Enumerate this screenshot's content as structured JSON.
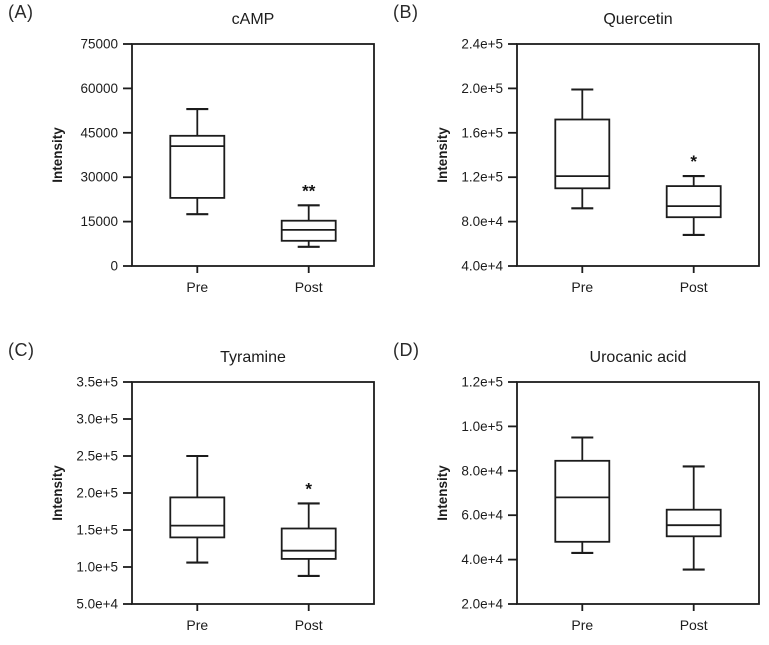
{
  "figure": {
    "background_color": "#ffffff",
    "line_color": "#1c1c1c",
    "box_fill_color": "#ffffff"
  },
  "chart_data": [
    {
      "type": "box",
      "panel_label": "(A)",
      "title": "cAMP",
      "ylabel": "Intensity",
      "xlabel": "",
      "categories": [
        "Pre",
        "Post"
      ],
      "ylim": [
        0,
        75000
      ],
      "grid": false,
      "yticks": [
        {
          "value": 0,
          "label": "0"
        },
        {
          "value": 15000,
          "label": "15000"
        },
        {
          "value": 30000,
          "label": "30000"
        },
        {
          "value": 45000,
          "label": "45000"
        },
        {
          "value": 60000,
          "label": "60000"
        },
        {
          "value": 75000,
          "label": "75000"
        }
      ],
      "series": [
        {
          "name": "Pre",
          "whisker_low": 17500,
          "q1": 23000,
          "median": 40500,
          "q3": 44000,
          "whisker_high": 53000,
          "significance": ""
        },
        {
          "name": "Post",
          "whisker_low": 6500,
          "q1": 8500,
          "median": 12200,
          "q3": 15300,
          "whisker_high": 20500,
          "significance": "**"
        }
      ]
    },
    {
      "type": "box",
      "panel_label": "(B)",
      "title": "Quercetin",
      "ylabel": "Intensity",
      "xlabel": "",
      "categories": [
        "Pre",
        "Post"
      ],
      "ylim": [
        40000,
        240000
      ],
      "grid": false,
      "yticks": [
        {
          "value": 40000,
          "label": "4.0e+4"
        },
        {
          "value": 80000,
          "label": "8.0e+4"
        },
        {
          "value": 120000,
          "label": "1.2e+5"
        },
        {
          "value": 160000,
          "label": "1.6e+5"
        },
        {
          "value": 200000,
          "label": "2.0e+5"
        },
        {
          "value": 240000,
          "label": "2.4e+5"
        }
      ],
      "series": [
        {
          "name": "Pre",
          "whisker_low": 92000,
          "q1": 110000,
          "median": 121000,
          "q3": 172000,
          "whisker_high": 199000,
          "significance": ""
        },
        {
          "name": "Post",
          "whisker_low": 68000,
          "q1": 84000,
          "median": 94000,
          "q3": 112000,
          "whisker_high": 121000,
          "significance": "*"
        }
      ]
    },
    {
      "type": "box",
      "panel_label": "(C)",
      "title": "Tyramine",
      "ylabel": "Intensity",
      "xlabel": "",
      "categories": [
        "Pre",
        "Post"
      ],
      "ylim": [
        50000,
        350000
      ],
      "grid": false,
      "yticks": [
        {
          "value": 50000,
          "label": "5.0e+4"
        },
        {
          "value": 100000,
          "label": "1.0e+5"
        },
        {
          "value": 150000,
          "label": "1.5e+5"
        },
        {
          "value": 200000,
          "label": "2.0e+5"
        },
        {
          "value": 250000,
          "label": "2.5e+5"
        },
        {
          "value": 300000,
          "label": "3.0e+5"
        },
        {
          "value": 350000,
          "label": "3.5e+5"
        }
      ],
      "series": [
        {
          "name": "Pre",
          "whisker_low": 106000,
          "q1": 140000,
          "median": 156000,
          "q3": 194000,
          "whisker_high": 250000,
          "significance": ""
        },
        {
          "name": "Post",
          "whisker_low": 88000,
          "q1": 111000,
          "median": 122000,
          "q3": 152000,
          "whisker_high": 186000,
          "significance": "*"
        }
      ]
    },
    {
      "type": "box",
      "panel_label": "(D)",
      "title": "Urocanic acid",
      "ylabel": "Intensity",
      "xlabel": "",
      "categories": [
        "Pre",
        "Post"
      ],
      "ylim": [
        20000,
        120000
      ],
      "grid": false,
      "yticks": [
        {
          "value": 20000,
          "label": "2.0e+4"
        },
        {
          "value": 40000,
          "label": "4.0e+4"
        },
        {
          "value": 60000,
          "label": "6.0e+4"
        },
        {
          "value": 80000,
          "label": "8.0e+4"
        },
        {
          "value": 100000,
          "label": "1.0e+5"
        },
        {
          "value": 120000,
          "label": "1.2e+5"
        }
      ],
      "series": [
        {
          "name": "Pre",
          "whisker_low": 43000,
          "q1": 48000,
          "median": 68000,
          "q3": 84500,
          "whisker_high": 95000,
          "significance": ""
        },
        {
          "name": "Post",
          "whisker_low": 35500,
          "q1": 50500,
          "median": 55500,
          "q3": 62500,
          "whisker_high": 82000,
          "significance": ""
        }
      ]
    }
  ]
}
